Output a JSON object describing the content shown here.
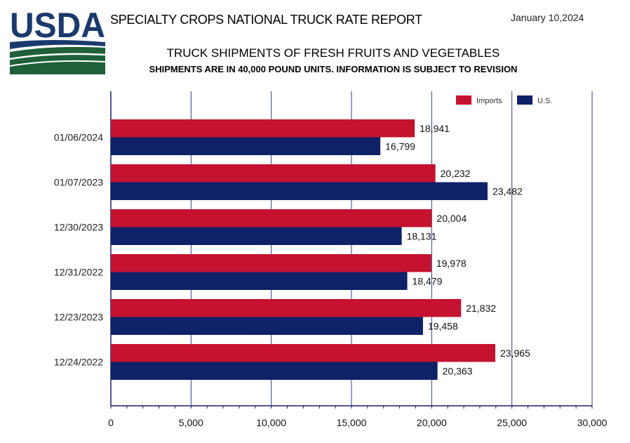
{
  "header": {
    "logo_text": "USDA",
    "report_title": "SPECIALTY CROPS NATIONAL TRUCK RATE REPORT",
    "date": "January 10,2024"
  },
  "chart_data": {
    "type": "bar",
    "orientation": "horizontal",
    "title": "TRUCK SHIPMENTS OF FRESH FRUITS AND VEGETABLES",
    "subtitle": "SHIPMENTS ARE IN 40,000 POUND UNITS. INFORMATION IS SUBJECT TO REVISION",
    "categories": [
      "01/06/2024",
      "01/07/2023",
      "12/30/2023",
      "12/31/2022",
      "12/23/2023",
      "12/24/2022"
    ],
    "series": [
      {
        "name": "Imports",
        "color": "#c41230",
        "values": [
          18941,
          20232,
          20004,
          19978,
          21832,
          23965
        ],
        "labels": [
          "18,941",
          "20,232",
          "20,004",
          "19,978",
          "21,832",
          "23,965"
        ]
      },
      {
        "name": "U.S.",
        "color": "#0f2167",
        "values": [
          16799,
          23482,
          18131,
          18479,
          19458,
          20363
        ],
        "labels": [
          "16,799",
          "23,482",
          "18,131",
          "18,479",
          "19,458",
          "20,363"
        ]
      }
    ],
    "xlim": [
      0,
      30000
    ],
    "xticks": [
      0,
      5000,
      10000,
      15000,
      20000,
      25000,
      30000
    ],
    "xtick_labels": [
      "0",
      "5,000",
      "10,000",
      "15,000",
      "20,000",
      "25,000",
      "30,000"
    ],
    "grid": true,
    "legend_position": "top-right"
  }
}
